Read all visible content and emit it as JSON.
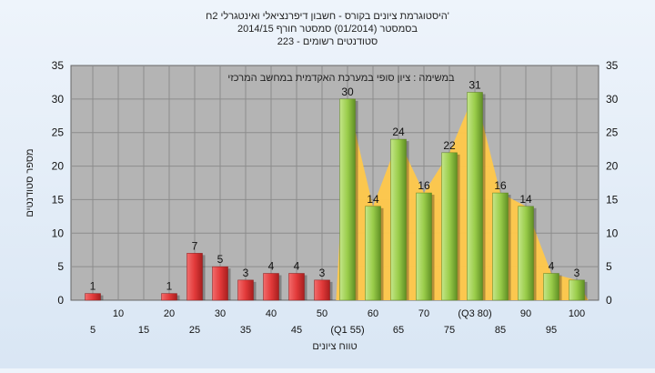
{
  "chart_data": {
    "type": "bar",
    "title_lines": [
      "היסטוגרמת ציונים בקורס - חשבון דיפרנציאלי ואינטגרלי 2ח'",
      "בסמסטר (01/2014) סמסטר חורף 2014/15",
      "סטודנטים רשומים - 223"
    ],
    "subtitle": "במשימה : ציון סופי במערכת האקדמית במחשב המרכזי",
    "xlabel": "טווח ציונים",
    "ylabel": "מספר סטודנטים",
    "ylim": [
      0,
      35
    ],
    "yticks": [
      0,
      5,
      10,
      15,
      20,
      25,
      30,
      35
    ],
    "grid": true,
    "categories": [
      "5",
      "10",
      "15",
      "20",
      "25",
      "30",
      "35",
      "40",
      "45",
      "50",
      "(Q1 55)",
      "60",
      "65",
      "70",
      "75",
      "(Q3 80)",
      "85",
      "90",
      "95",
      "100"
    ],
    "values": [
      1,
      0,
      0,
      1,
      7,
      5,
      3,
      4,
      4,
      3,
      30,
      14,
      24,
      16,
      22,
      31,
      16,
      14,
      4,
      3
    ],
    "value_labels": [
      "1",
      "",
      "",
      "1",
      "7",
      "5",
      "3",
      "4",
      "4",
      "3",
      "30",
      "14",
      "24",
      "16",
      "22",
      "31",
      "16",
      "14",
      "4",
      "3"
    ],
    "fail_threshold_index": 10,
    "colors": {
      "fail_bar": "#e23a3a",
      "pass_bar": "#9acd4a",
      "area": "#ffc84a",
      "plot_bg": "#b4b4b4",
      "grid": "#8c8c8c"
    }
  }
}
